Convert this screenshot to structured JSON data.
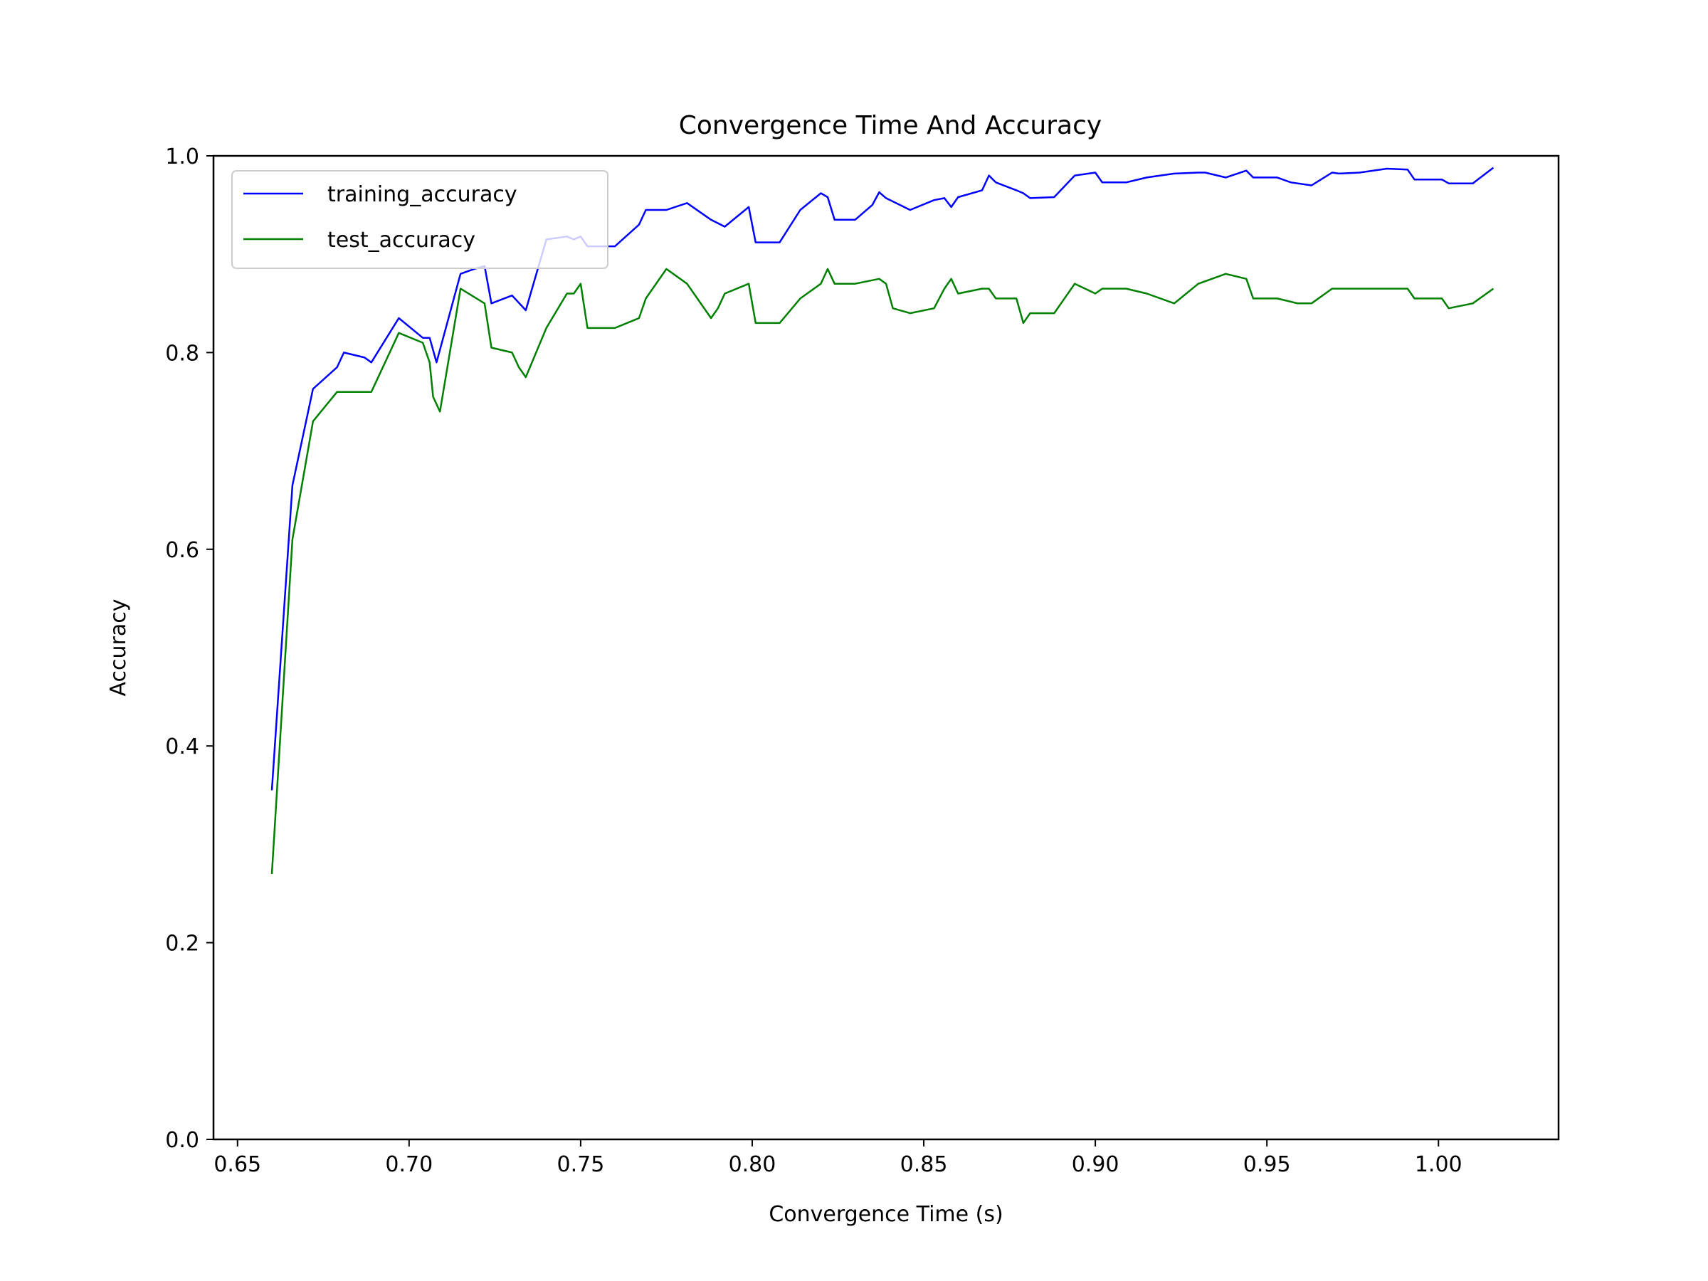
{
  "chart_data": {
    "type": "line",
    "title": "Convergence Time And Accuracy",
    "xlabel": "Convergence Time (s)",
    "ylabel": "Accuracy",
    "xlim": [
      0.643,
      1.035
    ],
    "ylim": [
      0.0,
      1.0
    ],
    "xticks": [
      0.65,
      0.7,
      0.75,
      0.8,
      0.85,
      0.9,
      0.95,
      1.0
    ],
    "xtick_labels": [
      "0.65",
      "0.70",
      "0.75",
      "0.80",
      "0.85",
      "0.90",
      "0.95",
      "1.00"
    ],
    "yticks": [
      0.0,
      0.2,
      0.4,
      0.6,
      0.8,
      1.0
    ],
    "ytick_labels": [
      "0.0",
      "0.2",
      "0.4",
      "0.6",
      "0.8",
      "1.0"
    ],
    "grid": false,
    "legend_position": "upper-left",
    "series": [
      {
        "name": "training_accuracy",
        "color": "#0000ff",
        "points": [
          [
            0.66,
            0.355
          ],
          [
            0.666,
            0.665
          ],
          [
            0.672,
            0.763
          ],
          [
            0.679,
            0.785
          ],
          [
            0.681,
            0.8
          ],
          [
            0.687,
            0.795
          ],
          [
            0.689,
            0.79
          ],
          [
            0.697,
            0.835
          ],
          [
            0.704,
            0.815
          ],
          [
            0.706,
            0.815
          ],
          [
            0.708,
            0.79
          ],
          [
            0.715,
            0.88
          ],
          [
            0.719,
            0.885
          ],
          [
            0.722,
            0.888
          ],
          [
            0.724,
            0.85
          ],
          [
            0.73,
            0.858
          ],
          [
            0.734,
            0.843
          ],
          [
            0.74,
            0.915
          ],
          [
            0.746,
            0.918
          ],
          [
            0.748,
            0.915
          ],
          [
            0.75,
            0.918
          ],
          [
            0.752,
            0.908
          ],
          [
            0.76,
            0.908
          ],
          [
            0.767,
            0.93
          ],
          [
            0.769,
            0.945
          ],
          [
            0.775,
            0.945
          ],
          [
            0.781,
            0.952
          ],
          [
            0.788,
            0.935
          ],
          [
            0.792,
            0.928
          ],
          [
            0.799,
            0.948
          ],
          [
            0.801,
            0.912
          ],
          [
            0.808,
            0.912
          ],
          [
            0.814,
            0.945
          ],
          [
            0.82,
            0.962
          ],
          [
            0.822,
            0.958
          ],
          [
            0.824,
            0.935
          ],
          [
            0.83,
            0.935
          ],
          [
            0.835,
            0.95
          ],
          [
            0.837,
            0.963
          ],
          [
            0.839,
            0.957
          ],
          [
            0.846,
            0.945
          ],
          [
            0.853,
            0.955
          ],
          [
            0.856,
            0.957
          ],
          [
            0.858,
            0.948
          ],
          [
            0.86,
            0.958
          ],
          [
            0.867,
            0.965
          ],
          [
            0.869,
            0.98
          ],
          [
            0.871,
            0.973
          ],
          [
            0.877,
            0.965
          ],
          [
            0.879,
            0.962
          ],
          [
            0.881,
            0.957
          ],
          [
            0.888,
            0.958
          ],
          [
            0.894,
            0.98
          ],
          [
            0.9,
            0.983
          ],
          [
            0.902,
            0.973
          ],
          [
            0.909,
            0.973
          ],
          [
            0.915,
            0.978
          ],
          [
            0.923,
            0.982
          ],
          [
            0.93,
            0.983
          ],
          [
            0.932,
            0.983
          ],
          [
            0.938,
            0.978
          ],
          [
            0.944,
            0.985
          ],
          [
            0.946,
            0.978
          ],
          [
            0.953,
            0.978
          ],
          [
            0.957,
            0.973
          ],
          [
            0.963,
            0.97
          ],
          [
            0.969,
            0.983
          ],
          [
            0.971,
            0.982
          ],
          [
            0.977,
            0.983
          ],
          [
            0.985,
            0.987
          ],
          [
            0.991,
            0.986
          ],
          [
            0.993,
            0.976
          ],
          [
            0.999,
            0.976
          ],
          [
            1.001,
            0.976
          ],
          [
            1.003,
            0.972
          ],
          [
            1.01,
            0.972
          ],
          [
            1.016,
            0.988
          ]
        ]
      },
      {
        "name": "test_accuracy",
        "color": "#008000",
        "points": [
          [
            0.66,
            0.27
          ],
          [
            0.666,
            0.61
          ],
          [
            0.672,
            0.73
          ],
          [
            0.679,
            0.76
          ],
          [
            0.689,
            0.76
          ],
          [
            0.697,
            0.82
          ],
          [
            0.704,
            0.81
          ],
          [
            0.706,
            0.79
          ],
          [
            0.707,
            0.755
          ],
          [
            0.709,
            0.74
          ],
          [
            0.715,
            0.865
          ],
          [
            0.722,
            0.85
          ],
          [
            0.724,
            0.805
          ],
          [
            0.73,
            0.8
          ],
          [
            0.732,
            0.785
          ],
          [
            0.734,
            0.775
          ],
          [
            0.74,
            0.825
          ],
          [
            0.746,
            0.86
          ],
          [
            0.748,
            0.86
          ],
          [
            0.75,
            0.87
          ],
          [
            0.752,
            0.825
          ],
          [
            0.76,
            0.825
          ],
          [
            0.767,
            0.835
          ],
          [
            0.769,
            0.855
          ],
          [
            0.775,
            0.885
          ],
          [
            0.781,
            0.87
          ],
          [
            0.788,
            0.835
          ],
          [
            0.79,
            0.845
          ],
          [
            0.792,
            0.86
          ],
          [
            0.799,
            0.87
          ],
          [
            0.801,
            0.83
          ],
          [
            0.808,
            0.83
          ],
          [
            0.814,
            0.855
          ],
          [
            0.82,
            0.87
          ],
          [
            0.822,
            0.885
          ],
          [
            0.824,
            0.87
          ],
          [
            0.83,
            0.87
          ],
          [
            0.837,
            0.875
          ],
          [
            0.839,
            0.87
          ],
          [
            0.841,
            0.845
          ],
          [
            0.846,
            0.84
          ],
          [
            0.853,
            0.845
          ],
          [
            0.856,
            0.865
          ],
          [
            0.858,
            0.875
          ],
          [
            0.86,
            0.86
          ],
          [
            0.867,
            0.865
          ],
          [
            0.869,
            0.865
          ],
          [
            0.871,
            0.855
          ],
          [
            0.877,
            0.855
          ],
          [
            0.879,
            0.83
          ],
          [
            0.881,
            0.84
          ],
          [
            0.888,
            0.84
          ],
          [
            0.894,
            0.87
          ],
          [
            0.9,
            0.86
          ],
          [
            0.902,
            0.865
          ],
          [
            0.909,
            0.865
          ],
          [
            0.915,
            0.86
          ],
          [
            0.923,
            0.85
          ],
          [
            0.93,
            0.87
          ],
          [
            0.938,
            0.88
          ],
          [
            0.944,
            0.875
          ],
          [
            0.946,
            0.855
          ],
          [
            0.953,
            0.855
          ],
          [
            0.959,
            0.85
          ],
          [
            0.963,
            0.85
          ],
          [
            0.969,
            0.865
          ],
          [
            0.977,
            0.865
          ],
          [
            0.985,
            0.865
          ],
          [
            0.991,
            0.865
          ],
          [
            0.993,
            0.855
          ],
          [
            1.001,
            0.855
          ],
          [
            1.003,
            0.845
          ],
          [
            1.01,
            0.85
          ],
          [
            1.016,
            0.865
          ]
        ]
      }
    ]
  }
}
